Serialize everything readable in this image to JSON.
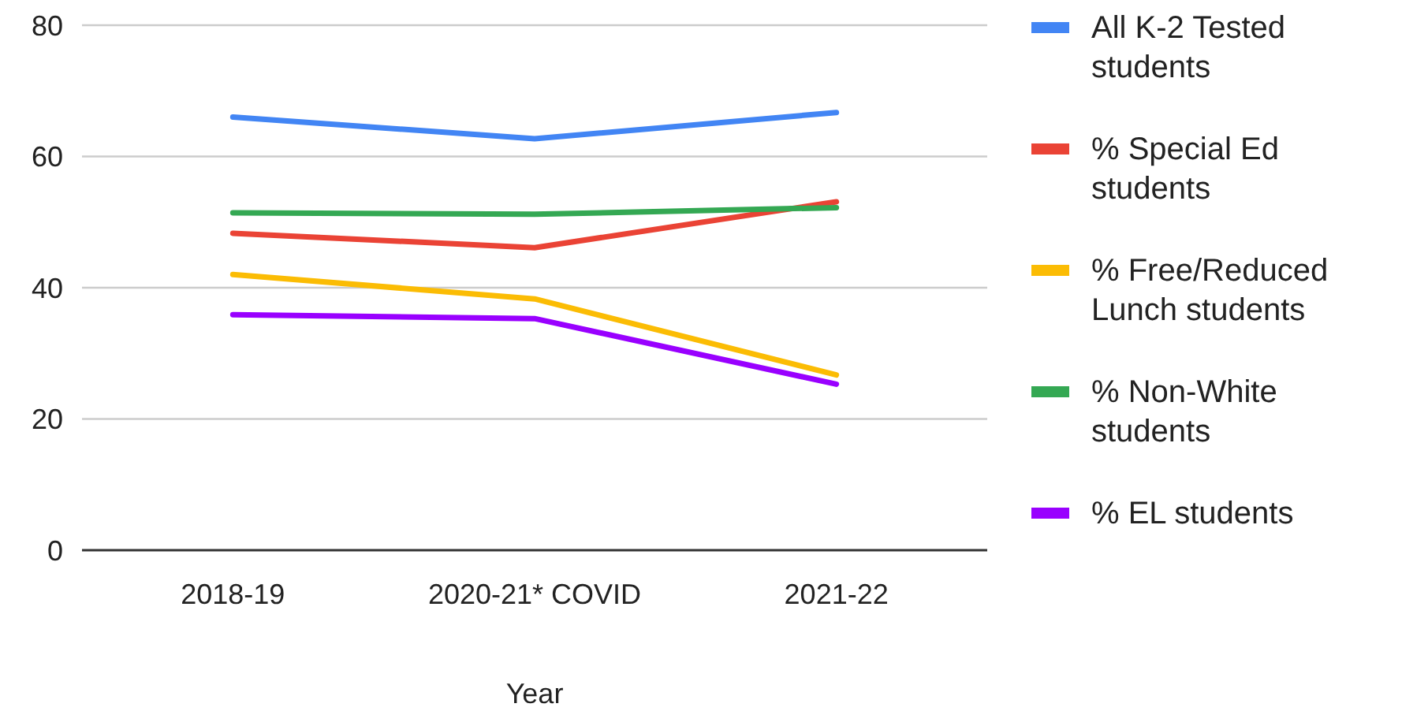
{
  "chart_data": {
    "type": "line",
    "xlabel": "Year",
    "categories": [
      "2018-19",
      "2020-21* COVID",
      "2021-22"
    ],
    "series": [
      {
        "name": "All K-2 Tested students",
        "color": "#4285f4",
        "values": [
          66,
          62.7,
          66.7
        ]
      },
      {
        "name": "% Special Ed students",
        "color": "#ea4335",
        "values": [
          48.3,
          46.1,
          53.1
        ]
      },
      {
        "name": "% Free/Reduced Lunch students",
        "color": "#fbbc04",
        "values": [
          42,
          38.3,
          26.7
        ]
      },
      {
        "name": "% Non-White students",
        "color": "#34a853",
        "values": [
          51.4,
          51.2,
          52.2
        ]
      },
      {
        "name": "% EL students",
        "color": "#9900ff",
        "values": [
          35.9,
          35.3,
          25.3
        ]
      }
    ],
    "ylim": [
      0,
      80
    ],
    "yticks": [
      0,
      20,
      40,
      60,
      80
    ],
    "grid": "y",
    "legend": "right",
    "marker": "none",
    "line_style": "solid"
  }
}
